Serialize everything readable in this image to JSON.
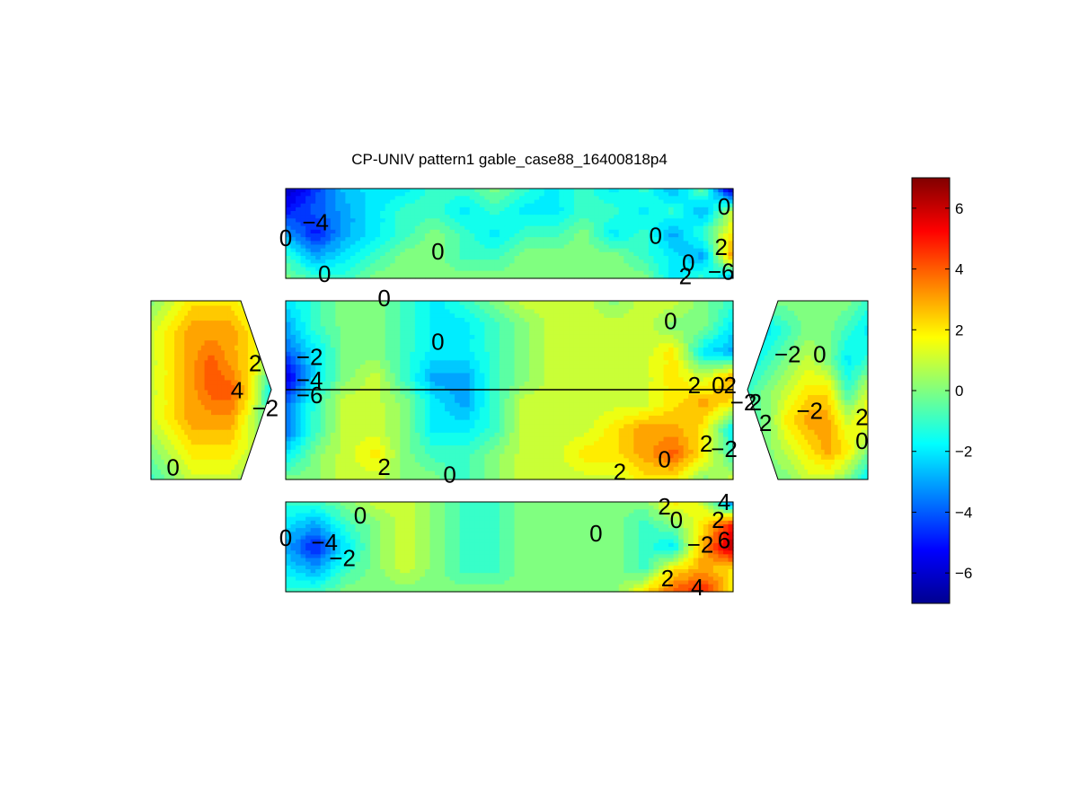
{
  "chart_data": {
    "type": "heatmap",
    "subtype": "filled-contour",
    "title": "CP-UNIV pattern1 gable_case88_16400818p4",
    "colormap": "jet",
    "colorbar": {
      "clim": [
        -7,
        7
      ],
      "ticks": [
        6,
        4,
        2,
        0,
        -2,
        -4,
        -6
      ],
      "tick_labels": [
        "6",
        "4",
        "2",
        "0",
        "−2",
        "−4",
        "−6"
      ],
      "stops": [
        "#00008f",
        "#0000ff",
        "#0080ff",
        "#00ffff",
        "#80ff80",
        "#ffff00",
        "#ff8000",
        "#ff0000",
        "#800000"
      ]
    },
    "panels": [
      {
        "name": "roof-windward",
        "grid": [
          [
            -6.5,
            -4.5,
            -2.5,
            -2,
            -2,
            -1,
            -1,
            0,
            -1,
            -2,
            -1,
            -2,
            -1,
            -3,
            0,
            -7
          ],
          [
            -5,
            -4,
            -3,
            -2,
            -1,
            -1,
            -2,
            -1,
            -2,
            -2,
            -1,
            -1,
            -2,
            -1,
            -3,
            1
          ],
          [
            -3,
            -5,
            -3,
            -2,
            -1,
            0,
            -1,
            -2,
            -1,
            -1,
            0,
            -2,
            -1,
            -3,
            -1,
            2
          ],
          [
            -1,
            -3,
            -2,
            -1,
            0,
            0,
            -1,
            -1,
            0,
            0,
            0,
            0,
            -1,
            -2,
            -3,
            3.5
          ],
          [
            0,
            -1,
            -1,
            0,
            0,
            0,
            0,
            0,
            0,
            0,
            0,
            0,
            0,
            -2,
            -1,
            -3
          ]
        ],
        "contour_labels": [
          {
            "t": "0",
            "c": 0,
            "r": 2.2
          },
          {
            "t": "−4",
            "c": 1,
            "r": 1.5
          },
          {
            "t": "0",
            "c": 1.3,
            "r": 3.8
          },
          {
            "t": "0",
            "c": 5.1,
            "r": 2.8
          },
          {
            "t": "0",
            "c": 12.4,
            "r": 2.1
          },
          {
            "t": "0",
            "c": 13.5,
            "r": 3.3
          },
          {
            "t": "2",
            "c": 13.4,
            "r": 3.9
          },
          {
            "t": "0",
            "c": 14.7,
            "r": 0.8
          },
          {
            "t": "2",
            "c": 14.6,
            "r": 2.6
          },
          {
            "t": "−6",
            "c": 14.6,
            "r": 3.7
          }
        ]
      },
      {
        "name": "wall-left",
        "grid": [
          [
            0,
            1,
            2,
            2,
            2,
            1,
            0
          ],
          [
            1,
            2,
            3,
            3,
            3,
            2,
            1
          ],
          [
            1,
            2,
            3,
            4,
            3,
            2,
            0
          ],
          [
            1,
            2,
            3,
            4,
            4,
            2,
            -2
          ],
          [
            1,
            2,
            3,
            3,
            3,
            1,
            -1
          ],
          [
            0,
            1,
            2,
            2,
            2,
            1,
            0
          ],
          [
            -1,
            0,
            1,
            1,
            1,
            0,
            -1
          ]
        ],
        "contour_labels": [
          {
            "t": "2",
            "c": 5.2,
            "r": 2.1
          },
          {
            "t": "4",
            "c": 4.3,
            "r": 3.0
          },
          {
            "t": "−2",
            "c": 5.7,
            "r": 3.6
          },
          {
            "t": "0",
            "c": 1.1,
            "r": 5.6
          }
        ]
      },
      {
        "name": "wall-main",
        "grid": [
          [
            -2,
            -1,
            0,
            0,
            -1,
            -2,
            -1,
            0,
            1,
            1,
            1,
            0,
            1,
            1,
            0,
            -1
          ],
          [
            -3,
            -1,
            0,
            0,
            -1,
            -2,
            -2,
            -1,
            0,
            1,
            1,
            1,
            1,
            0,
            0,
            -2
          ],
          [
            -4,
            -2,
            0,
            0,
            -1,
            -2,
            -2,
            -1,
            0,
            1,
            1,
            1,
            1,
            2,
            -2,
            -3
          ],
          [
            -6,
            -2,
            0,
            1,
            -1,
            -3,
            -3,
            -1,
            0,
            1,
            1,
            1,
            1,
            2,
            1,
            3
          ],
          [
            -4,
            -1,
            1,
            1,
            0,
            -2,
            -3,
            -1,
            1,
            1,
            1,
            1,
            1,
            2,
            3,
            2
          ],
          [
            -4,
            -1,
            1,
            1,
            0,
            -2,
            -2,
            -1,
            1,
            1,
            1,
            2,
            3,
            3,
            2,
            -2
          ],
          [
            -2,
            0,
            1,
            2,
            0,
            -1,
            -1,
            0,
            1,
            1,
            2,
            2,
            3,
            4,
            2,
            -1
          ],
          [
            0,
            0,
            1,
            1,
            0,
            0,
            -1,
            0,
            1,
            1,
            1,
            1,
            2,
            2,
            0,
            1
          ]
        ],
        "contour_labels": [
          {
            "t": "0",
            "c": 3.3,
            "r": -0.1
          },
          {
            "t": "0",
            "c": 12.9,
            "r": 0.8
          },
          {
            "t": "0",
            "c": 5.1,
            "r": 1.6
          },
          {
            "t": "−2",
            "c": 0.8,
            "r": 2.2
          },
          {
            "t": "−4",
            "c": 0.8,
            "r": 3.1
          },
          {
            "t": "−6",
            "c": 0.8,
            "r": 3.7
          },
          {
            "t": "2",
            "c": 13.7,
            "r": 3.3
          },
          {
            "t": "0",
            "c": 14.5,
            "r": 3.3
          },
          {
            "t": "2",
            "c": 14.9,
            "r": 3.3
          },
          {
            "t": "2",
            "c": 14.1,
            "r": 5.6
          },
          {
            "t": "−2",
            "c": 14.7,
            "r": 5.8
          },
          {
            "t": "0",
            "c": 12.7,
            "r": 6.2
          },
          {
            "t": "2",
            "c": 3.3,
            "r": 6.5
          },
          {
            "t": "0",
            "c": 5.5,
            "r": 6.8
          },
          {
            "t": "2",
            "c": 11.2,
            "r": 6.7
          }
        ]
      },
      {
        "name": "wall-right",
        "grid": [
          [
            -1,
            0,
            0,
            0,
            0,
            0,
            -1
          ],
          [
            -2,
            -2,
            -1,
            0,
            0,
            -1,
            -2
          ],
          [
            -2,
            -1,
            0,
            1,
            0,
            -2,
            -1
          ],
          [
            -1,
            0,
            1,
            2,
            2,
            -1,
            1
          ],
          [
            -1,
            0,
            2,
            3,
            3,
            1,
            2
          ],
          [
            0,
            0,
            1,
            2,
            3,
            2,
            0
          ],
          [
            -1,
            0,
            0,
            1,
            1,
            0,
            -2
          ]
        ],
        "contour_labels": [
          {
            "t": "−2",
            "c": 2.0,
            "r": 1.8
          },
          {
            "t": "0",
            "c": 3.6,
            "r": 1.8
          },
          {
            "t": "−2",
            "c": -0.2,
            "r": 3.4
          },
          {
            "t": "2",
            "c": 0.4,
            "r": 3.4
          },
          {
            "t": "2",
            "c": 0.9,
            "r": 4.1
          },
          {
            "t": "−2",
            "c": 3.1,
            "r": 3.7
          },
          {
            "t": "2",
            "c": 5.7,
            "r": 3.9
          },
          {
            "t": "0",
            "c": 5.7,
            "r": 4.7
          }
        ]
      },
      {
        "name": "roof-leeward",
        "grid": [
          [
            -1,
            -1,
            0,
            1,
            1,
            0,
            -1,
            -1,
            0,
            0,
            0,
            0,
            0,
            2,
            1,
            -4
          ],
          [
            -2,
            -3,
            -1,
            0,
            1,
            0,
            -1,
            -1,
            0,
            0,
            0,
            0,
            -1,
            0,
            2,
            5
          ],
          [
            -3,
            -5,
            -2,
            0,
            1,
            0,
            -1,
            -1,
            0,
            0,
            0,
            0,
            -1,
            -2,
            3,
            6.5
          ],
          [
            -2,
            -3,
            -1,
            0,
            1,
            0,
            -1,
            -1,
            0,
            0,
            0,
            0,
            -1,
            2,
            3,
            2
          ],
          [
            -1,
            -1,
            0,
            0,
            0,
            0,
            0,
            0,
            0,
            0,
            0,
            0,
            2,
            4,
            5,
            2
          ]
        ],
        "contour_labels": [
          {
            "t": "0",
            "c": 2.5,
            "r": 0.6
          },
          {
            "t": "0",
            "c": 0,
            "r": 1.6
          },
          {
            "t": "−4",
            "c": 1.3,
            "r": 1.8
          },
          {
            "t": "−2",
            "c": 1.9,
            "r": 2.5
          },
          {
            "t": "0",
            "c": 10.4,
            "r": 1.4
          },
          {
            "t": "2",
            "c": 12.7,
            "r": 0.2
          },
          {
            "t": "0",
            "c": 13.1,
            "r": 0.8
          },
          {
            "t": "−2",
            "c": 13.9,
            "r": 1.9
          },
          {
            "t": "4",
            "c": 14.7,
            "r": 0.0
          },
          {
            "t": "2",
            "c": 14.5,
            "r": 0.8
          },
          {
            "t": "6",
            "c": 14.7,
            "r": 1.7
          },
          {
            "t": "2",
            "c": 12.8,
            "r": 3.4
          },
          {
            "t": "4",
            "c": 13.8,
            "r": 3.8
          }
        ]
      }
    ]
  }
}
